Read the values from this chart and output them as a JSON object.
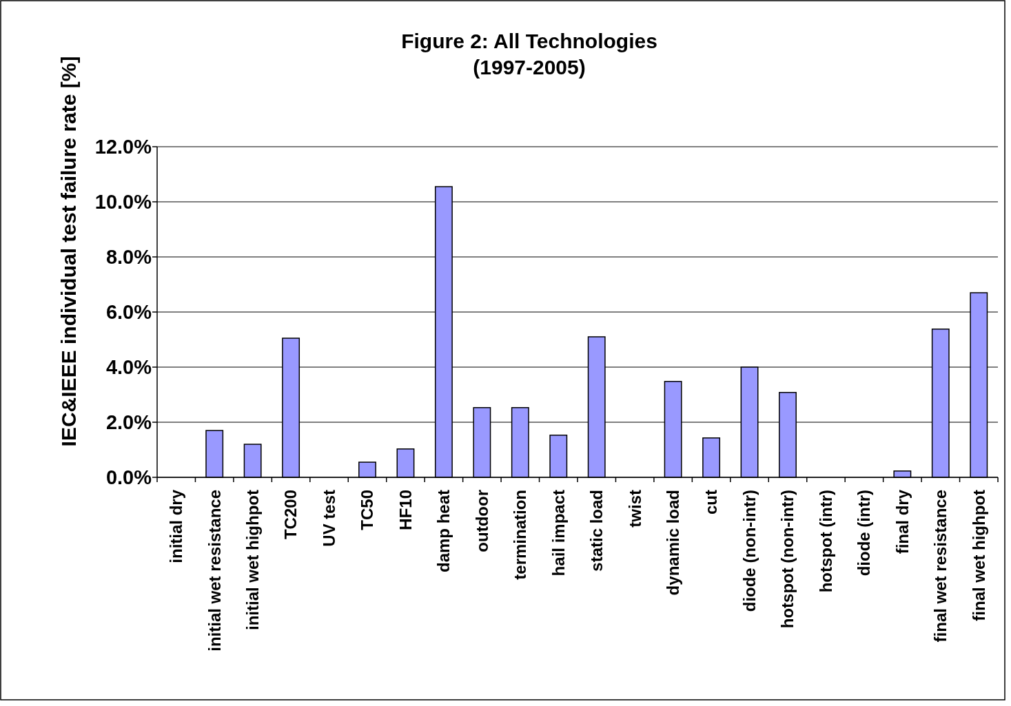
{
  "chart_data": {
    "type": "bar",
    "title": "Figure 2: All Technologies\n(1997-2005)",
    "ylabel": "IEC&IEEE individual test failure rate [%]",
    "categories": [
      "initial dry",
      "initial wet resistance",
      "initial wet highpot",
      "TC200",
      "UV test",
      "TC50",
      "HF10",
      "damp heat",
      "outdoor",
      "termination",
      "hail impact",
      "static load",
      "twist",
      "dynamic load",
      "cut",
      "diode (non-intr)",
      "hotspot (non-intr)",
      "hotspot (intr)",
      "diode (intr)",
      "final dry",
      "final wet resistance",
      "final wet highpot"
    ],
    "values": [
      0,
      1.7,
      1.2,
      5.05,
      0,
      0.55,
      1.03,
      10.55,
      2.53,
      2.53,
      1.53,
      5.1,
      0,
      3.48,
      1.43,
      4.0,
      3.08,
      0,
      0,
      0.23,
      5.38,
      6.7
    ],
    "color": "#9999ff",
    "ylim": [
      0,
      12
    ],
    "yticks": [
      {
        "value": 0,
        "label": "0.0%"
      },
      {
        "value": 2,
        "label": "2.0%"
      },
      {
        "value": 4,
        "label": "4.0%"
      },
      {
        "value": 6,
        "label": "6.0%"
      },
      {
        "value": 8,
        "label": "8.0%"
      },
      {
        "value": 10,
        "label": "10.0%"
      },
      {
        "value": 12,
        "label": "12.0%"
      }
    ],
    "grid": "y"
  }
}
